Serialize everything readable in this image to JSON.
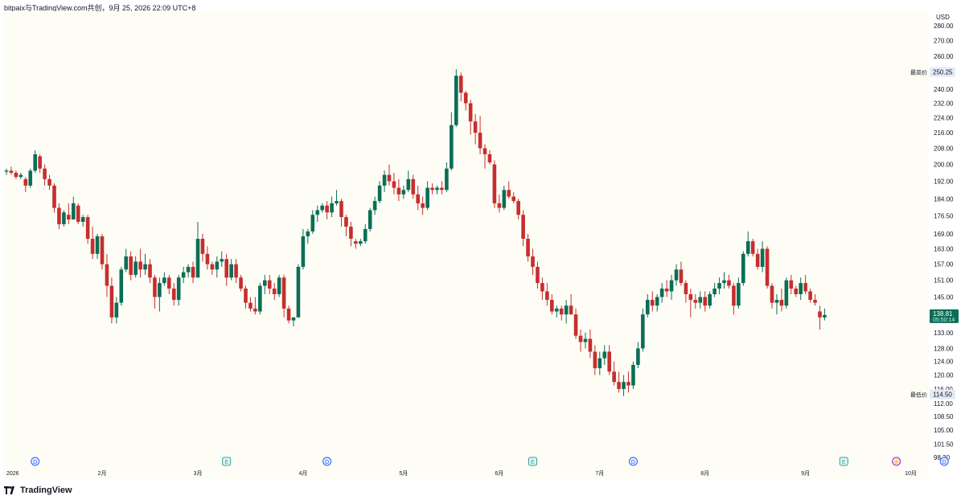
{
  "header": {
    "text": "bitpaix与TradingView.com共创，9月 25, 2026 22:09 UTC+8"
  },
  "brand": {
    "name": "TradingView"
  },
  "chart_data": {
    "type": "candlestick",
    "currency": "USD",
    "y_scale": "log",
    "ylim": [
      96,
      290
    ],
    "y_ticks": [
      98.3,
      101.5,
      105.0,
      108.5,
      112.0,
      116.0,
      120.0,
      124.0,
      128.0,
      133.0,
      139.0,
      145.0,
      151.0,
      157.0,
      163.0,
      169.0,
      176.5,
      184.0,
      192.0,
      200.0,
      208.0,
      216.0,
      224.0,
      232.0,
      240.0,
      250.0,
      260.0,
      270.0,
      280.0
    ],
    "x_ticks": [
      {
        "label": "2026",
        "index": 0
      },
      {
        "label": "2月",
        "index": 20
      },
      {
        "label": "3月",
        "index": 40
      },
      {
        "label": "4月",
        "index": 62
      },
      {
        "label": "5月",
        "index": 83
      },
      {
        "label": "6月",
        "index": 103
      },
      {
        "label": "7月",
        "index": 124
      },
      {
        "label": "8月",
        "index": 146
      },
      {
        "label": "9月",
        "index": 167
      },
      {
        "label": "10月",
        "index": 189
      }
    ],
    "high_label": {
      "text": "最高价",
      "value": "250.25"
    },
    "low_label": {
      "text": "最低价",
      "value": "114.50"
    },
    "current": {
      "price": "138.81",
      "countdown": "05:50:14"
    },
    "event_markers": [
      {
        "index": 6,
        "letter": "D",
        "kind": "dividend"
      },
      {
        "index": 46,
        "letter": "E",
        "kind": "earnings"
      },
      {
        "index": 67,
        "letter": "D",
        "kind": "dividend"
      },
      {
        "index": 110,
        "letter": "E",
        "kind": "earnings"
      },
      {
        "index": 131,
        "letter": "D",
        "kind": "dividend"
      },
      {
        "index": 175,
        "letter": "E",
        "kind": "earnings"
      },
      {
        "index": 186,
        "letter": "⚡",
        "kind": "split"
      },
      {
        "index": 196,
        "letter": "D",
        "kind": "dividend"
      }
    ],
    "candles": [
      [
        196.5,
        198,
        195,
        197
      ],
      [
        197,
        199,
        195,
        196
      ],
      [
        196,
        197,
        193,
        194
      ],
      [
        194,
        196,
        193,
        195
      ],
      [
        193,
        194,
        187,
        190
      ],
      [
        190,
        198,
        189,
        197
      ],
      [
        197,
        207,
        196,
        205
      ],
      [
        204,
        205,
        196,
        198
      ],
      [
        198,
        200,
        190,
        193
      ],
      [
        193,
        195,
        188,
        190
      ],
      [
        190,
        191,
        178,
        180
      ],
      [
        180,
        182,
        171,
        173
      ],
      [
        173,
        179,
        172,
        178
      ],
      [
        177,
        182,
        173,
        175
      ],
      [
        175,
        185,
        175,
        182
      ],
      [
        181,
        182,
        173,
        174
      ],
      [
        174,
        177,
        172,
        176
      ],
      [
        176,
        177,
        165,
        167
      ],
      [
        167,
        172,
        159,
        161
      ],
      [
        161,
        169,
        159,
        168
      ],
      [
        168,
        169,
        155,
        157
      ],
      [
        157,
        161,
        145,
        149
      ],
      [
        149,
        152,
        136,
        138
      ],
      [
        138,
        145,
        136,
        143
      ],
      [
        143,
        156,
        142,
        155
      ],
      [
        155,
        163,
        154,
        160
      ],
      [
        160,
        162,
        151,
        153
      ],
      [
        153,
        160,
        152,
        158
      ],
      [
        158,
        163,
        152,
        155
      ],
      [
        155,
        161,
        153,
        157
      ],
      [
        157,
        159,
        150,
        152
      ],
      [
        152,
        153,
        141,
        145
      ],
      [
        145,
        152,
        140,
        150
      ],
      [
        150,
        154,
        149,
        152
      ],
      [
        152,
        153,
        146,
        148
      ],
      [
        148,
        150,
        142,
        144
      ],
      [
        144,
        153,
        142,
        152
      ],
      [
        152,
        156,
        150,
        154
      ],
      [
        154,
        157,
        152,
        156
      ],
      [
        156,
        158,
        150,
        152
      ],
      [
        152,
        174,
        152,
        167
      ],
      [
        167,
        169,
        158,
        161
      ],
      [
        161,
        164,
        155,
        157
      ],
      [
        157,
        158,
        153,
        155
      ],
      [
        155,
        160,
        152,
        158
      ],
      [
        158,
        162,
        156,
        159
      ],
      [
        159,
        161,
        149,
        152
      ],
      [
        152,
        159,
        151,
        157
      ],
      [
        157,
        159,
        150,
        152
      ],
      [
        152,
        153,
        147,
        148
      ],
      [
        148,
        149,
        141,
        143
      ],
      [
        143,
        145,
        140,
        141
      ],
      [
        141,
        145,
        139,
        140
      ],
      [
        140,
        150,
        139,
        149
      ],
      [
        149,
        153,
        146,
        151
      ],
      [
        151,
        153,
        146,
        148
      ],
      [
        148,
        150,
        144,
        146
      ],
      [
        146,
        153,
        145,
        152
      ],
      [
        152,
        153,
        138,
        141
      ],
      [
        141,
        142,
        136,
        137
      ],
      [
        137,
        138,
        135,
        138
      ],
      [
        138,
        157,
        138,
        156
      ],
      [
        156,
        171,
        155,
        168
      ],
      [
        168,
        171,
        165,
        170
      ],
      [
        170,
        179,
        169,
        177
      ],
      [
        177,
        181,
        174,
        179
      ],
      [
        179,
        182,
        178,
        181
      ],
      [
        181,
        183,
        175,
        178
      ],
      [
        178,
        185,
        176,
        182
      ],
      [
        182,
        188,
        181,
        183
      ],
      [
        183,
        184,
        172,
        176
      ],
      [
        176,
        177,
        168,
        172
      ],
      [
        172,
        174,
        164,
        167
      ],
      [
        166,
        167,
        163,
        165
      ],
      [
        165,
        167,
        164,
        166
      ],
      [
        166,
        173,
        165,
        171
      ],
      [
        171,
        180,
        170,
        179
      ],
      [
        179,
        185,
        177,
        183
      ],
      [
        183,
        192,
        182,
        190
      ],
      [
        190,
        197,
        187,
        195
      ],
      [
        195,
        200,
        190,
        192
      ],
      [
        192,
        196,
        186,
        189
      ],
      [
        189,
        193,
        183,
        186
      ],
      [
        186,
        190,
        184,
        188
      ],
      [
        188,
        197,
        187,
        193
      ],
      [
        193,
        195,
        184,
        186
      ],
      [
        186,
        190,
        179,
        182
      ],
      [
        182,
        185,
        177,
        180
      ],
      [
        180,
        192,
        179,
        189
      ],
      [
        189,
        191,
        186,
        188
      ],
      [
        188,
        190,
        186,
        189
      ],
      [
        189,
        192,
        186,
        188
      ],
      [
        188,
        201,
        187,
        198
      ],
      [
        198,
        227,
        197,
        220
      ],
      [
        220,
        252,
        219,
        248
      ],
      [
        248,
        250,
        233,
        238
      ],
      [
        238,
        239,
        228,
        232
      ],
      [
        232,
        234,
        215,
        222
      ],
      [
        222,
        226,
        210,
        216
      ],
      [
        216,
        225,
        205,
        208
      ],
      [
        208,
        210,
        198,
        205
      ],
      [
        205,
        207,
        200,
        201
      ],
      [
        200,
        202,
        180,
        182
      ],
      [
        182,
        186,
        178,
        180
      ],
      [
        180,
        190,
        179,
        188
      ],
      [
        188,
        192,
        184,
        185
      ],
      [
        185,
        187,
        182,
        183
      ],
      [
        183,
        184,
        175,
        177
      ],
      [
        177,
        179,
        164,
        167
      ],
      [
        167,
        169,
        158,
        160
      ],
      [
        160,
        163,
        153,
        156
      ],
      [
        156,
        158,
        148,
        150
      ],
      [
        150,
        152,
        144,
        147
      ],
      [
        147,
        150,
        142,
        144
      ],
      [
        144,
        146,
        139,
        140
      ],
      [
        140,
        142,
        138,
        141
      ],
      [
        141,
        142,
        137,
        139
      ],
      [
        139,
        144,
        136,
        142
      ],
      [
        142,
        146,
        140,
        139
      ],
      [
        139,
        141,
        131,
        132
      ],
      [
        132,
        134,
        127,
        130
      ],
      [
        130,
        133,
        128,
        131
      ],
      [
        131,
        134,
        125,
        127
      ],
      [
        127,
        129,
        120,
        122
      ],
      [
        122,
        127,
        120,
        125
      ],
      [
        125,
        129,
        123,
        127
      ],
      [
        127,
        129,
        120,
        121
      ],
      [
        121,
        124,
        117,
        118
      ],
      [
        118,
        121,
        115,
        116
      ],
      [
        116,
        120,
        114,
        118
      ],
      [
        118,
        121,
        115,
        117
      ],
      [
        117,
        124,
        116,
        123
      ],
      [
        123,
        130,
        122,
        128
      ],
      [
        128,
        141,
        127,
        139
      ],
      [
        139,
        146,
        138,
        144
      ],
      [
        144,
        147,
        140,
        142
      ],
      [
        142,
        146,
        140,
        145
      ],
      [
        145,
        150,
        143,
        148
      ],
      [
        148,
        151,
        145,
        147
      ],
      [
        147,
        153,
        144,
        151
      ],
      [
        151,
        157,
        149,
        155
      ],
      [
        155,
        158,
        149,
        150
      ],
      [
        150,
        151,
        143,
        146
      ],
      [
        146,
        148,
        138,
        144
      ],
      [
        144,
        146,
        141,
        143
      ],
      [
        143,
        147,
        141,
        145
      ],
      [
        145,
        147,
        140,
        142
      ],
      [
        142,
        147,
        141,
        146
      ],
      [
        146,
        150,
        145,
        148
      ],
      [
        148,
        152,
        146,
        150
      ],
      [
        150,
        154,
        148,
        151
      ],
      [
        151,
        153,
        148,
        149
      ],
      [
        149,
        150,
        139,
        142
      ],
      [
        142,
        152,
        141,
        150
      ],
      [
        150,
        162,
        149,
        161
      ],
      [
        161,
        170,
        160,
        166
      ],
      [
        166,
        167,
        160,
        161
      ],
      [
        161,
        163,
        155,
        156
      ],
      [
        156,
        166,
        154,
        163
      ],
      [
        163,
        164,
        148,
        149
      ],
      [
        149,
        150,
        141,
        143
      ],
      [
        143,
        146,
        139,
        144
      ],
      [
        144,
        148,
        140,
        142
      ],
      [
        142,
        152,
        141,
        151
      ],
      [
        151,
        153,
        146,
        148
      ],
      [
        148,
        149,
        145,
        146
      ],
      [
        146,
        152,
        144,
        150
      ],
      [
        150,
        153,
        146,
        147
      ],
      [
        147,
        148,
        143,
        144
      ],
      [
        144,
        146,
        142,
        143
      ],
      [
        140,
        142,
        134,
        138
      ],
      [
        138,
        141,
        137,
        138.81
      ]
    ]
  }
}
